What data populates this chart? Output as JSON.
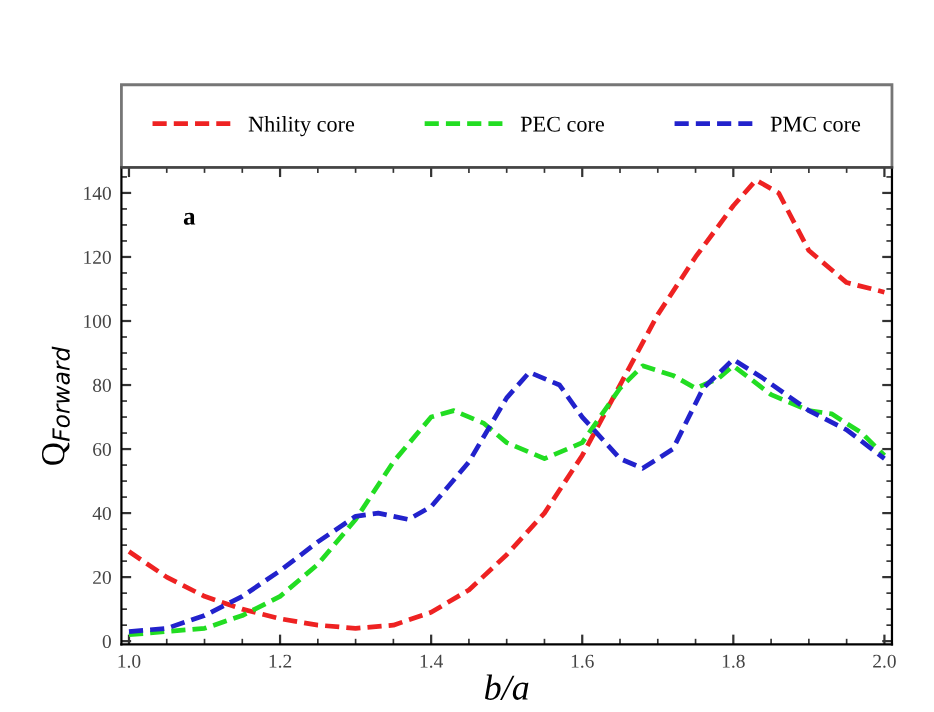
{
  "chart_data": {
    "type": "line",
    "xlabel": "b/a",
    "ylabel": "Q$_{Forward}$",
    "annotations": [
      "a"
    ],
    "xlim": [
      0.99,
      2.01
    ],
    "ylim": [
      -1,
      148
    ],
    "xticks": [
      {
        "value": 1.0,
        "label": "1.0"
      },
      1.2,
      1.4,
      1.6,
      1.8,
      {
        "value": 2.0,
        "label": "2.0"
      }
    ],
    "yticks": [
      0,
      20,
      40,
      60,
      80,
      100,
      120,
      140
    ],
    "grid": false,
    "legend": "top",
    "line_style": "dashed",
    "marker": "none",
    "series": [
      {
        "name": "Nhility core",
        "color": "#ee2222",
        "x": [
          1.0,
          1.05,
          1.1,
          1.15,
          1.2,
          1.25,
          1.3,
          1.35,
          1.4,
          1.45,
          1.5,
          1.55,
          1.6,
          1.65,
          1.7,
          1.75,
          1.8,
          1.83,
          1.86,
          1.9,
          1.95,
          2.0
        ],
        "values": [
          28,
          20,
          14,
          10,
          7,
          5,
          4,
          5,
          9,
          16,
          27,
          40,
          58,
          80,
          102,
          120,
          136,
          144,
          140,
          122,
          112,
          109
        ]
      },
      {
        "name": "PEC core",
        "color": "#22dd22",
        "x": [
          1.0,
          1.1,
          1.15,
          1.2,
          1.25,
          1.3,
          1.35,
          1.4,
          1.43,
          1.47,
          1.5,
          1.55,
          1.6,
          1.65,
          1.68,
          1.72,
          1.75,
          1.78,
          1.8,
          1.85,
          1.9,
          1.93,
          1.97,
          2.0
        ],
        "values": [
          2,
          4,
          8,
          14,
          24,
          38,
          56,
          70,
          72,
          68,
          62,
          57,
          62,
          79,
          86,
          83,
          79,
          82,
          86,
          77,
          72,
          71,
          65,
          58
        ]
      },
      {
        "name": "PMC core",
        "color": "#2222cc",
        "x": [
          1.0,
          1.05,
          1.1,
          1.15,
          1.2,
          1.25,
          1.3,
          1.33,
          1.37,
          1.4,
          1.45,
          1.5,
          1.53,
          1.57,
          1.6,
          1.65,
          1.68,
          1.72,
          1.76,
          1.8,
          1.84,
          1.9,
          1.95,
          2.0
        ],
        "values": [
          3,
          4,
          8,
          14,
          22,
          31,
          39,
          40,
          38,
          42,
          56,
          76,
          84,
          80,
          70,
          57,
          54,
          60,
          79,
          88,
          82,
          72,
          66,
          57
        ]
      }
    ]
  }
}
